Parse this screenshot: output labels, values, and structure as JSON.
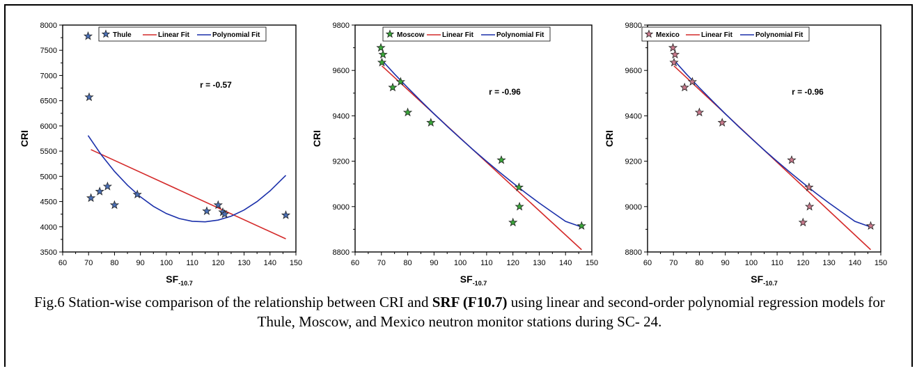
{
  "caption": {
    "prefix": "Fig.6 Station-wise comparison of the relationship between CRI and ",
    "bold": "SRF (F10.7)",
    "suffix": " using linear and second-order polynomial regression models for Thule, Moscow, and Mexico neutron monitor stations during SC- 24."
  },
  "chart_data": [
    {
      "type": "scatter",
      "xlabel_main": "SF",
      "xlabel_sub": "-10.7",
      "ylabel": "CRI",
      "xlim": [
        60,
        150
      ],
      "ylim": [
        3500,
        8000
      ],
      "xticks": [
        60,
        70,
        80,
        90,
        100,
        110,
        120,
        130,
        140,
        150
      ],
      "yticks": [
        3500,
        4000,
        4500,
        5000,
        5500,
        6000,
        6500,
        7000,
        7500,
        8000
      ],
      "legend": {
        "station": "Thule",
        "linear": "Linear Fit",
        "poly": "Polynomial Fit",
        "placement": "top"
      },
      "annotation": "r = -0.57",
      "marker_color": "#4a6fb5",
      "points": [
        [
          69.8,
          7780
        ],
        [
          70.2,
          6570
        ],
        [
          70.9,
          4570
        ],
        [
          74.3,
          4700
        ],
        [
          77.3,
          4800
        ],
        [
          80.0,
          4430
        ],
        [
          88.8,
          4640
        ],
        [
          115.6,
          4310
        ],
        [
          120.0,
          4430
        ],
        [
          121.8,
          4290
        ],
        [
          122.5,
          4250
        ],
        [
          146.1,
          4230
        ]
      ],
      "linear_fit": [
        [
          70.9,
          5530
        ],
        [
          146.1,
          3760
        ]
      ],
      "poly_fit": [
        [
          69.8,
          5810
        ],
        [
          75,
          5420
        ],
        [
          80,
          5099
        ],
        [
          85,
          4824
        ],
        [
          90,
          4593
        ],
        [
          95,
          4405
        ],
        [
          100,
          4262
        ],
        [
          105,
          4163
        ],
        [
          110,
          4109
        ],
        [
          115,
          4098
        ],
        [
          120,
          4132
        ],
        [
          125,
          4210
        ],
        [
          130,
          4332
        ],
        [
          135,
          4499
        ],
        [
          140,
          4710
        ],
        [
          146.1,
          5020
        ]
      ]
    },
    {
      "type": "scatter",
      "xlabel_main": "SF",
      "xlabel_sub": "-10.7",
      "ylabel": "CRI",
      "xlim": [
        60,
        150
      ],
      "ylim": [
        8800,
        9800
      ],
      "xticks": [
        60,
        70,
        80,
        90,
        100,
        110,
        120,
        130,
        140,
        150
      ],
      "yticks": [
        8800,
        9000,
        9200,
        9400,
        9600,
        9800
      ],
      "legend": {
        "station": "Moscow",
        "linear": "Linear Fit",
        "poly": "Polynomial Fit",
        "placement": "top"
      },
      "annotation": "r = -0.96",
      "marker_color": "#3aa63a",
      "points": [
        [
          69.8,
          9700
        ],
        [
          70.6,
          9670
        ],
        [
          70.2,
          9635
        ],
        [
          74.3,
          9525
        ],
        [
          77.3,
          9550
        ],
        [
          80.0,
          9415
        ],
        [
          88.8,
          9370
        ],
        [
          115.6,
          9205
        ],
        [
          122.3,
          9085
        ],
        [
          122.5,
          9000
        ],
        [
          120.0,
          8930
        ],
        [
          146.1,
          8915
        ]
      ],
      "linear_fit": [
        [
          70.2,
          9620
        ],
        [
          146.1,
          8810
        ]
      ],
      "poly_fit": [
        [
          70.2,
          9645
        ],
        [
          75,
          9584
        ],
        [
          80,
          9524
        ],
        [
          85,
          9466
        ],
        [
          90,
          9409
        ],
        [
          95,
          9354
        ],
        [
          100,
          9301
        ],
        [
          105,
          9249
        ],
        [
          110,
          9199
        ],
        [
          115,
          9151
        ],
        [
          120,
          9104
        ],
        [
          125,
          9059
        ],
        [
          130,
          9016
        ],
        [
          135,
          8975
        ],
        [
          140,
          8935
        ],
        [
          146.1,
          8910
        ]
      ]
    },
    {
      "type": "scatter",
      "xlabel_main": "SF",
      "xlabel_sub": "-10.7",
      "ylabel": "CRI",
      "xlim": [
        60,
        150
      ],
      "ylim": [
        8800,
        9800
      ],
      "xticks": [
        60,
        70,
        80,
        90,
        100,
        110,
        120,
        130,
        140,
        150
      ],
      "yticks": [
        8800,
        9000,
        9200,
        9400,
        9600,
        9800
      ],
      "legend": {
        "station": "Mexico",
        "linear": "Linear Fit",
        "poly": "Polynomial Fit",
        "placement": "top"
      },
      "annotation": "r = -0.96",
      "marker_color": "#c97a8c",
      "points": [
        [
          69.8,
          9700
        ],
        [
          70.6,
          9670
        ],
        [
          70.2,
          9635
        ],
        [
          74.3,
          9525
        ],
        [
          77.3,
          9550
        ],
        [
          80.0,
          9415
        ],
        [
          88.8,
          9370
        ],
        [
          115.6,
          9205
        ],
        [
          122.3,
          9085
        ],
        [
          122.5,
          9000
        ],
        [
          120.0,
          8930
        ],
        [
          146.1,
          8915
        ]
      ],
      "linear_fit": [
        [
          70.2,
          9620
        ],
        [
          146.1,
          8810
        ]
      ],
      "poly_fit": [
        [
          70.2,
          9645
        ],
        [
          75,
          9584
        ],
        [
          80,
          9524
        ],
        [
          85,
          9466
        ],
        [
          90,
          9409
        ],
        [
          95,
          9354
        ],
        [
          100,
          9301
        ],
        [
          105,
          9249
        ],
        [
          110,
          9199
        ],
        [
          115,
          9151
        ],
        [
          120,
          9104
        ],
        [
          125,
          9059
        ],
        [
          130,
          9016
        ],
        [
          135,
          8975
        ],
        [
          140,
          8935
        ],
        [
          146.1,
          8910
        ]
      ]
    }
  ],
  "colors": {
    "linear": "#d42a2a",
    "poly": "#1a2faa",
    "axis": "#000000"
  }
}
